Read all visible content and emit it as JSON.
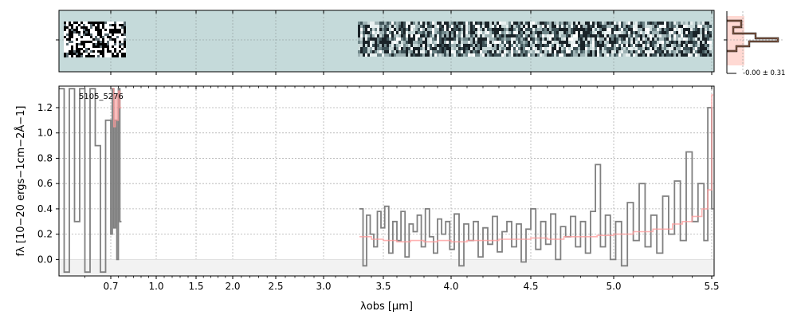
{
  "chart_data": {
    "type": "line",
    "object_id": "5105_5276",
    "xlabel": "λobs [μm]",
    "ylabel": "fλ [10−20 ergs−1cm−2Å−1]",
    "ylim": [
      -0.13,
      1.37
    ],
    "yticks": [
      0.0,
      0.2,
      0.4,
      0.6,
      0.8,
      1.0,
      1.2
    ],
    "yticklabels": [
      "0.0",
      "0.2",
      "0.4",
      "0.6",
      "0.8",
      "1.0",
      "1.2"
    ],
    "xticks": [
      0.7,
      1.0,
      1.5,
      2.0,
      2.5,
      3.0,
      3.5,
      4.0,
      4.5,
      5.0,
      5.5
    ],
    "xticklabels": [
      "0.7",
      "1.0",
      "1.5",
      "2.0",
      "2.5",
      "3.0",
      "3.5",
      "4.0",
      "4.5",
      "5.0",
      "5.5"
    ],
    "grid": true,
    "histogram_label": "-0.00 ± 0.31",
    "series": [
      {
        "role": "data",
        "color": "#808080",
        "segments": [
          {
            "x": [
              0.6,
              0.61,
              0.62,
              0.63,
              0.64,
              0.65,
              0.66,
              0.67,
              0.68,
              0.69,
              0.7,
              0.71,
              0.72,
              0.73,
              0.74,
              0.75,
              0.76
            ],
            "y": [
              1.35,
              -0.1,
              1.35,
              0.3,
              1.35,
              -0.1,
              1.35,
              0.9,
              -0.1,
              1.1,
              0.2,
              1.35,
              0.25,
              1.1,
              0.0,
              1.35,
              0.3
            ]
          },
          {
            "x": [
              3.3,
              3.33,
              3.36,
              3.39,
              3.42,
              3.45,
              3.48,
              3.51,
              3.54,
              3.57,
              3.6,
              3.63,
              3.66,
              3.69,
              3.72,
              3.75,
              3.78,
              3.81,
              3.84,
              3.87,
              3.9,
              3.93,
              3.96,
              3.99,
              4.02,
              4.05,
              4.08,
              4.11,
              4.14,
              4.17,
              4.2,
              4.23,
              4.26,
              4.29,
              4.32,
              4.35,
              4.38,
              4.41,
              4.44,
              4.47,
              4.5,
              4.53,
              4.56,
              4.59,
              4.62,
              4.65,
              4.68,
              4.71,
              4.74,
              4.77,
              4.8,
              4.83,
              4.86,
              4.89,
              4.92,
              4.95,
              4.98,
              5.01,
              5.04,
              5.07,
              5.1,
              5.13,
              5.16,
              5.19,
              5.22,
              5.25,
              5.28,
              5.31,
              5.34,
              5.37,
              5.4,
              5.43,
              5.46,
              5.48,
              5.5
            ],
            "y": [
              0.4,
              -0.05,
              0.35,
              0.2,
              0.1,
              0.38,
              0.25,
              0.42,
              0.05,
              0.3,
              0.15,
              0.38,
              0.02,
              0.28,
              0.22,
              0.35,
              0.1,
              0.4,
              0.18,
              0.05,
              0.32,
              0.2,
              0.3,
              0.08,
              0.36,
              -0.05,
              0.28,
              0.15,
              0.3,
              0.02,
              0.25,
              0.12,
              0.34,
              0.06,
              0.22,
              0.3,
              0.1,
              0.28,
              -0.02,
              0.24,
              0.4,
              0.08,
              0.3,
              0.12,
              0.36,
              0.0,
              0.26,
              0.18,
              0.34,
              0.1,
              0.3,
              0.05,
              0.38,
              0.75,
              0.1,
              0.35,
              0.0,
              0.3,
              -0.05,
              0.45,
              0.15,
              0.6,
              0.1,
              0.35,
              0.05,
              0.5,
              0.2,
              0.62,
              0.15,
              0.85,
              0.3,
              0.6,
              0.15,
              1.2,
              0.4
            ]
          }
        ]
      },
      {
        "role": "model",
        "color": "#ff9999",
        "segments": [
          {
            "x": [
              0.71,
              0.72,
              0.73,
              0.74,
              0.75,
              0.76
            ],
            "y": [
              1.35,
              1.05,
              1.3,
              1.1,
              1.33,
              1.2
            ]
          },
          {
            "x": [
              3.3,
              3.4,
              3.5,
              3.6,
              3.7,
              3.8,
              3.9,
              4.0,
              4.1,
              4.2,
              4.3,
              4.4,
              4.5,
              4.6,
              4.7,
              4.8,
              4.9,
              5.0,
              5.1,
              5.2,
              5.3,
              5.35,
              5.4,
              5.45,
              5.48,
              5.5
            ],
            "y": [
              0.18,
              0.16,
              0.15,
              0.14,
              0.15,
              0.14,
              0.15,
              0.14,
              0.15,
              0.15,
              0.16,
              0.16,
              0.17,
              0.16,
              0.18,
              0.18,
              0.19,
              0.2,
              0.22,
              0.24,
              0.28,
              0.3,
              0.34,
              0.4,
              0.55,
              1.3
            ]
          }
        ]
      }
    ]
  }
}
